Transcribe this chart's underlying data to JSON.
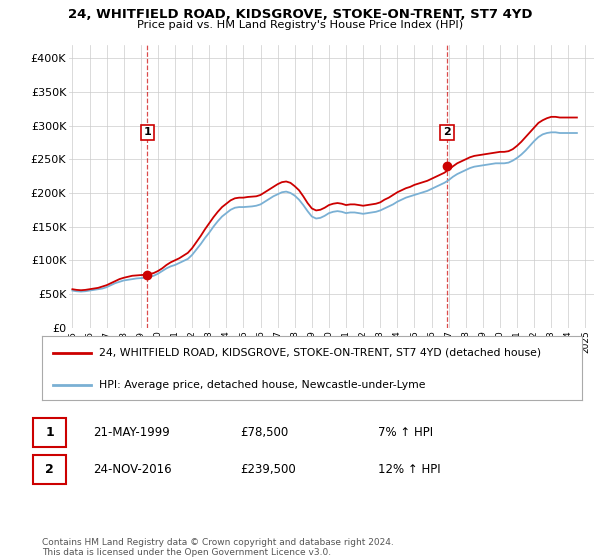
{
  "title": "24, WHITFIELD ROAD, KIDSGROVE, STOKE-ON-TRENT, ST7 4YD",
  "subtitle": "Price paid vs. HM Land Registry's House Price Index (HPI)",
  "ylabel_ticks": [
    "£0",
    "£50K",
    "£100K",
    "£150K",
    "£200K",
    "£250K",
    "£300K",
    "£350K",
    "£400K"
  ],
  "ytick_values": [
    0,
    50000,
    100000,
    150000,
    200000,
    250000,
    300000,
    350000,
    400000
  ],
  "ylim": [
    0,
    420000
  ],
  "xlim_start": 1994.8,
  "xlim_end": 2025.5,
  "xtick_years": [
    1995,
    1996,
    1997,
    1998,
    1999,
    2000,
    2001,
    2002,
    2003,
    2004,
    2005,
    2006,
    2007,
    2008,
    2009,
    2010,
    2011,
    2012,
    2013,
    2014,
    2015,
    2016,
    2017,
    2018,
    2019,
    2020,
    2021,
    2022,
    2023,
    2024,
    2025
  ],
  "hpi_color": "#7ab0d4",
  "price_color": "#cc0000",
  "dashed_line_color": "#cc0000",
  "bg_color": "#ffffff",
  "grid_color": "#cccccc",
  "sale1_x": 1999.38,
  "sale1_y": 78500,
  "sale2_x": 2016.9,
  "sale2_y": 239500,
  "legend_label_price": "24, WHITFIELD ROAD, KIDSGROVE, STOKE-ON-TRENT, ST7 4YD (detached house)",
  "legend_label_hpi": "HPI: Average price, detached house, Newcastle-under-Lyme",
  "annotation1_label": "1",
  "annotation2_label": "2",
  "annotation1_date": "21-MAY-1999",
  "annotation1_price": "£78,500",
  "annotation1_hpi": "7% ↑ HPI",
  "annotation2_date": "24-NOV-2016",
  "annotation2_price": "£239,500",
  "annotation2_hpi": "12% ↑ HPI",
  "footer": "Contains HM Land Registry data © Crown copyright and database right 2024.\nThis data is licensed under the Open Government Licence v3.0.",
  "hpi_data": {
    "years": [
      1995.0,
      1995.25,
      1995.5,
      1995.75,
      1996.0,
      1996.25,
      1996.5,
      1996.75,
      1997.0,
      1997.25,
      1997.5,
      1997.75,
      1998.0,
      1998.25,
      1998.5,
      1998.75,
      1999.0,
      1999.25,
      1999.5,
      1999.75,
      2000.0,
      2000.25,
      2000.5,
      2000.75,
      2001.0,
      2001.25,
      2001.5,
      2001.75,
      2002.0,
      2002.25,
      2002.5,
      2002.75,
      2003.0,
      2003.25,
      2003.5,
      2003.75,
      2004.0,
      2004.25,
      2004.5,
      2004.75,
      2005.0,
      2005.25,
      2005.5,
      2005.75,
      2006.0,
      2006.25,
      2006.5,
      2006.75,
      2007.0,
      2007.25,
      2007.5,
      2007.75,
      2008.0,
      2008.25,
      2008.5,
      2008.75,
      2009.0,
      2009.25,
      2009.5,
      2009.75,
      2010.0,
      2010.25,
      2010.5,
      2010.75,
      2011.0,
      2011.25,
      2011.5,
      2011.75,
      2012.0,
      2012.25,
      2012.5,
      2012.75,
      2013.0,
      2013.25,
      2013.5,
      2013.75,
      2014.0,
      2014.25,
      2014.5,
      2014.75,
      2015.0,
      2015.25,
      2015.5,
      2015.75,
      2016.0,
      2016.25,
      2016.5,
      2016.75,
      2017.0,
      2017.25,
      2017.5,
      2017.75,
      2018.0,
      2018.25,
      2018.5,
      2018.75,
      2019.0,
      2019.25,
      2019.5,
      2019.75,
      2020.0,
      2020.25,
      2020.5,
      2020.75,
      2021.0,
      2021.25,
      2021.5,
      2021.75,
      2022.0,
      2022.25,
      2022.5,
      2022.75,
      2023.0,
      2023.25,
      2023.5,
      2023.75,
      2024.0,
      2024.25,
      2024.5
    ],
    "values": [
      55000,
      54000,
      53500,
      54000,
      55000,
      56000,
      57000,
      58000,
      60000,
      63000,
      66000,
      68000,
      70000,
      71000,
      72000,
      73000,
      73500,
      74000,
      75000,
      77000,
      80000,
      84000,
      88000,
      91000,
      93000,
      96000,
      99000,
      102000,
      108000,
      116000,
      124000,
      133000,
      141000,
      150000,
      158000,
      165000,
      170000,
      175000,
      178000,
      179000,
      179000,
      179500,
      180000,
      181000,
      183000,
      187000,
      191000,
      195000,
      198000,
      201000,
      202000,
      200000,
      196000,
      190000,
      182000,
      173000,
      165000,
      162000,
      163000,
      166000,
      170000,
      172000,
      173000,
      172000,
      170000,
      171000,
      171000,
      170000,
      169000,
      170000,
      171000,
      172000,
      174000,
      177000,
      180000,
      183000,
      187000,
      190000,
      193000,
      195000,
      197000,
      199000,
      201000,
      203000,
      206000,
      209000,
      212000,
      215000,
      219000,
      224000,
      228000,
      231000,
      234000,
      237000,
      239000,
      240000,
      241000,
      242000,
      243000,
      244000,
      244000,
      244000,
      245000,
      248000,
      252000,
      257000,
      263000,
      270000,
      277000,
      283000,
      287000,
      289000,
      290000,
      290000,
      289000,
      289000,
      289000,
      289000,
      289000
    ]
  },
  "price_data": {
    "years": [
      1995.0,
      1995.25,
      1995.5,
      1995.75,
      1996.0,
      1996.25,
      1996.5,
      1996.75,
      1997.0,
      1997.25,
      1997.5,
      1997.75,
      1998.0,
      1998.25,
      1998.5,
      1998.75,
      1999.0,
      1999.25,
      1999.5,
      1999.75,
      2000.0,
      2000.25,
      2000.5,
      2000.75,
      2001.0,
      2001.25,
      2001.5,
      2001.75,
      2002.0,
      2002.25,
      2002.5,
      2002.75,
      2003.0,
      2003.25,
      2003.5,
      2003.75,
      2004.0,
      2004.25,
      2004.5,
      2004.75,
      2005.0,
      2005.25,
      2005.5,
      2005.75,
      2006.0,
      2006.25,
      2006.5,
      2006.75,
      2007.0,
      2007.25,
      2007.5,
      2007.75,
      2008.0,
      2008.25,
      2008.5,
      2008.75,
      2009.0,
      2009.25,
      2009.5,
      2009.75,
      2010.0,
      2010.25,
      2010.5,
      2010.75,
      2011.0,
      2011.25,
      2011.5,
      2011.75,
      2012.0,
      2012.25,
      2012.5,
      2012.75,
      2013.0,
      2013.25,
      2013.5,
      2013.75,
      2014.0,
      2014.25,
      2014.5,
      2014.75,
      2015.0,
      2015.25,
      2015.5,
      2015.75,
      2016.0,
      2016.25,
      2016.5,
      2016.75,
      2017.0,
      2017.25,
      2017.5,
      2017.75,
      2018.0,
      2018.25,
      2018.5,
      2018.75,
      2019.0,
      2019.25,
      2019.5,
      2019.75,
      2020.0,
      2020.25,
      2020.5,
      2020.75,
      2021.0,
      2021.25,
      2021.5,
      2021.75,
      2022.0,
      2022.25,
      2022.5,
      2022.75,
      2023.0,
      2023.25,
      2023.5,
      2023.75,
      2024.0,
      2024.25,
      2024.5
    ],
    "values": [
      57000,
      56000,
      55500,
      56000,
      57000,
      58000,
      59000,
      61000,
      63000,
      66000,
      69000,
      72000,
      74000,
      75500,
      77000,
      77500,
      78000,
      78500,
      79500,
      81000,
      84000,
      88000,
      93000,
      97000,
      100000,
      103000,
      107000,
      111000,
      118000,
      127000,
      136000,
      146000,
      155000,
      164000,
      172000,
      179000,
      184000,
      189000,
      192000,
      193000,
      193000,
      194000,
      194500,
      195000,
      197000,
      201000,
      205000,
      209000,
      213000,
      216000,
      217000,
      215000,
      210000,
      204000,
      195000,
      185000,
      177000,
      174000,
      175000,
      178000,
      182000,
      184000,
      185000,
      184000,
      182000,
      183000,
      183000,
      182000,
      181000,
      182000,
      183000,
      184000,
      186000,
      190000,
      193000,
      197000,
      201000,
      204000,
      207000,
      209000,
      212000,
      214000,
      216000,
      218000,
      221000,
      224000,
      227000,
      230000,
      234500,
      239500,
      244000,
      247000,
      250000,
      253000,
      255000,
      256000,
      257000,
      258000,
      259000,
      260000,
      261000,
      261000,
      262000,
      265000,
      270000,
      276000,
      283000,
      290000,
      297000,
      304000,
      308000,
      311000,
      313000,
      313000,
      312000,
      312000,
      312000,
      312000,
      312000
    ]
  }
}
